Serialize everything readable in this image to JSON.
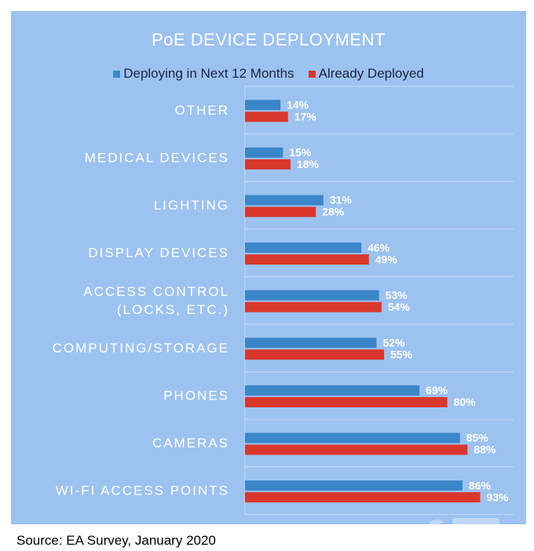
{
  "colors": {
    "background": "#9cc2f0",
    "series_deploying": "#3a86c8",
    "series_deployed": "#d9372b",
    "text_light": "#ffffff",
    "text_dark": "#1a2440",
    "gridline": "#c4dbf6"
  },
  "chart_data": {
    "type": "bar",
    "orientation": "horizontal",
    "title": "PoE DEVICE DEPLOYMENT",
    "legend_placement": "top",
    "categories": [
      [
        "OTHER"
      ],
      [
        "MEDICAL DEVICES"
      ],
      [
        "LIGHTING"
      ],
      [
        "DISPLAY DEVICES"
      ],
      [
        "ACCESS CONTROL",
        "(LOCKS, ETC.)"
      ],
      [
        "COMPUTING/STORAGE"
      ],
      [
        "PHONES"
      ],
      [
        "CAMERAS"
      ],
      [
        "WI-FI ACCESS POINTS"
      ]
    ],
    "series": [
      {
        "name": "Deploying in Next 12 Months",
        "color": "#3a86c8",
        "values": [
          14,
          15,
          31,
          46,
          53,
          52,
          69,
          85,
          86
        ]
      },
      {
        "name": "Already Deployed",
        "color": "#d9372b",
        "values": [
          17,
          18,
          28,
          49,
          54,
          55,
          80,
          88,
          93
        ]
      }
    ],
    "value_suffix": "%",
    "xlim": [
      0,
      100
    ],
    "grid": true
  },
  "source": "Source: EA Survey, January  2020"
}
